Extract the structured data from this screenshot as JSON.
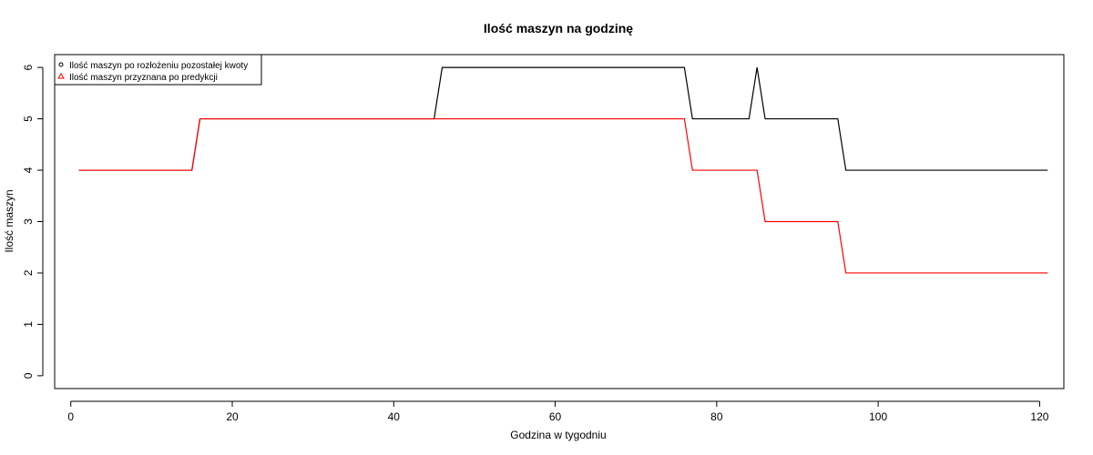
{
  "chart_data": {
    "type": "line",
    "title": "Ilość maszyn na godzinę",
    "xlabel": "Godzina w tygodniu",
    "ylabel": "Ilość maszyn",
    "xlim": [
      -2,
      123
    ],
    "ylim": [
      -0.25,
      6.25
    ],
    "xticks": [
      0,
      20,
      40,
      60,
      80,
      100,
      120
    ],
    "yticks": [
      0,
      1,
      2,
      3,
      4,
      5,
      6
    ],
    "grid": false,
    "legend_position": "top-left",
    "series": [
      {
        "name": "Ilość maszyn po rozłożeniu pozostałej kwoty",
        "color": "#000000",
        "marker": "circle",
        "points": [
          [
            1,
            4
          ],
          [
            15,
            4
          ],
          [
            16,
            5
          ],
          [
            45,
            5
          ],
          [
            46,
            6
          ],
          [
            76,
            6
          ],
          [
            77,
            5
          ],
          [
            84,
            5
          ],
          [
            85,
            6
          ],
          [
            86,
            5
          ],
          [
            95,
            5
          ],
          [
            96,
            4
          ],
          [
            121,
            4
          ]
        ]
      },
      {
        "name": "Ilość maszyn przyznana po predykcji",
        "color": "#ff0000",
        "marker": "triangle",
        "points": [
          [
            1,
            4
          ],
          [
            15,
            4
          ],
          [
            16,
            5
          ],
          [
            76,
            5
          ],
          [
            77,
            4
          ],
          [
            85,
            4
          ],
          [
            86,
            3
          ],
          [
            95,
            3
          ],
          [
            96,
            2
          ],
          [
            121,
            2
          ]
        ]
      }
    ]
  }
}
